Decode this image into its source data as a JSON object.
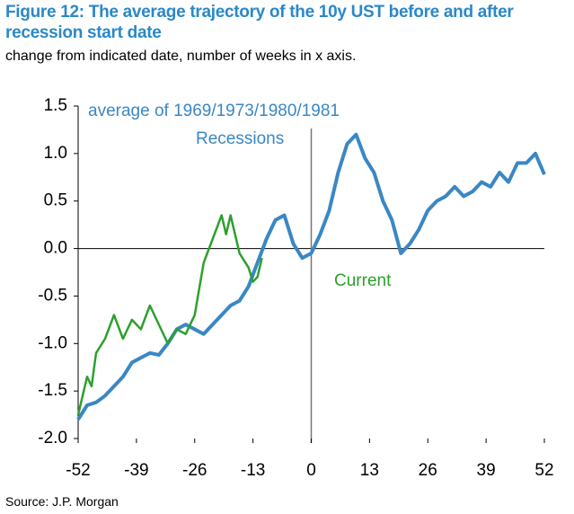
{
  "chart_data": {
    "type": "line",
    "title": "Figure 12: The average trajectory of the 10y UST before and after recession start date",
    "subtitle": "change from indicated date, number of weeks in x axis.",
    "source": "Source: J.P. Morgan",
    "annotations": [
      "average of 1969/1973/1980/1981"
    ],
    "series": [
      {
        "name": "Recessions",
        "color": "#3a87c4",
        "x": [
          -52,
          -50,
          -48,
          -46,
          -44,
          -42,
          -40,
          -38,
          -36,
          -34,
          -32,
          -30,
          -28,
          -26,
          -24,
          -22,
          -20,
          -18,
          -16,
          -14,
          -12,
          -10,
          -8,
          -6,
          -4,
          -2,
          0,
          2,
          4,
          6,
          8,
          10,
          12,
          14,
          16,
          18,
          20,
          22,
          24,
          26,
          28,
          30,
          32,
          34,
          36,
          38,
          40,
          42,
          44,
          46,
          48,
          50,
          52
        ],
        "values": [
          -1.8,
          -1.65,
          -1.62,
          -1.55,
          -1.45,
          -1.35,
          -1.2,
          -1.15,
          -1.1,
          -1.12,
          -1.0,
          -0.85,
          -0.8,
          -0.85,
          -0.9,
          -0.8,
          -0.7,
          -0.6,
          -0.55,
          -0.4,
          -0.15,
          0.1,
          0.3,
          0.35,
          0.05,
          -0.1,
          -0.05,
          0.15,
          0.4,
          0.8,
          1.1,
          1.2,
          0.95,
          0.8,
          0.5,
          0.3,
          -0.05,
          0.05,
          0.2,
          0.4,
          0.5,
          0.55,
          0.65,
          0.55,
          0.6,
          0.7,
          0.65,
          0.8,
          0.7,
          0.9,
          0.9,
          1.0,
          0.78
        ]
      },
      {
        "name": "Current",
        "color": "#2ca02c",
        "x": [
          -52,
          -50,
          -49,
          -48,
          -46,
          -44,
          -42,
          -40,
          -38,
          -36,
          -34,
          -32,
          -30,
          -28,
          -26,
          -24,
          -22,
          -20,
          -19,
          -18,
          -16,
          -14,
          -13,
          -12,
          -11
        ],
        "values": [
          -1.75,
          -1.35,
          -1.45,
          -1.1,
          -0.95,
          -0.7,
          -0.95,
          -0.75,
          -0.85,
          -0.6,
          -0.8,
          -1.0,
          -0.85,
          -0.9,
          -0.7,
          -0.15,
          0.1,
          0.35,
          0.15,
          0.35,
          -0.05,
          -0.2,
          -0.35,
          -0.3,
          -0.1
        ]
      }
    ],
    "xlim": [
      -52,
      52
    ],
    "xticks": [
      -52,
      -39,
      -26,
      -13,
      0,
      13,
      26,
      39,
      52
    ],
    "ylim": [
      -2,
      1.5
    ],
    "yticks": [
      {
        "value": -2,
        "label": "-2.0"
      },
      -1.5,
      {
        "value": -1,
        "label": "-1.0"
      },
      -0.5,
      {
        "value": 0,
        "label": "0.0"
      },
      0.5,
      {
        "value": 1,
        "label": "1.0"
      },
      1.5
    ]
  }
}
